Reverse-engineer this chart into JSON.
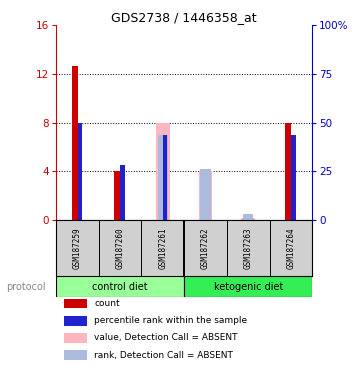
{
  "title": "GDS2738 / 1446358_at",
  "samples": [
    "GSM187259",
    "GSM187260",
    "GSM187261",
    "GSM187262",
    "GSM187263",
    "GSM187264"
  ],
  "left_ylim": [
    0,
    16
  ],
  "left_yticks": [
    0,
    4,
    8,
    12,
    16
  ],
  "right_ylim": [
    0,
    100
  ],
  "right_yticks": [
    0,
    25,
    50,
    75,
    100
  ],
  "right_yticklabels": [
    "0",
    "25",
    "50",
    "75",
    "100%"
  ],
  "left_tick_color": "#CC0000",
  "right_tick_color": "#0000CC",
  "red_values": [
    12.6,
    4.0,
    0.0,
    0.0,
    0.0,
    8.0
  ],
  "blue_values": [
    8.0,
    4.5,
    7.0,
    0.0,
    0.0,
    7.0
  ],
  "pink_values": [
    0.0,
    0.0,
    8.0,
    4.0,
    0.2,
    0.0
  ],
  "lblue_values": [
    0.0,
    0.0,
    7.0,
    4.2,
    0.5,
    0.0
  ],
  "red_color": "#CC0000",
  "blue_color": "#2222CC",
  "pink_color": "#FFB6C1",
  "lblue_color": "#AABBDD",
  "bg_color": "#D0D0D0",
  "plot_bg": "#FFFFFF",
  "control_color": "#99FF99",
  "ketogenic_color": "#33EE55",
  "legend_items": [
    {
      "color": "#CC0000",
      "label": "count"
    },
    {
      "color": "#2222CC",
      "label": "percentile rank within the sample"
    },
    {
      "color": "#FFB6C1",
      "label": "value, Detection Call = ABSENT"
    },
    {
      "color": "#AABBDD",
      "label": "rank, Detection Call = ABSENT"
    }
  ]
}
